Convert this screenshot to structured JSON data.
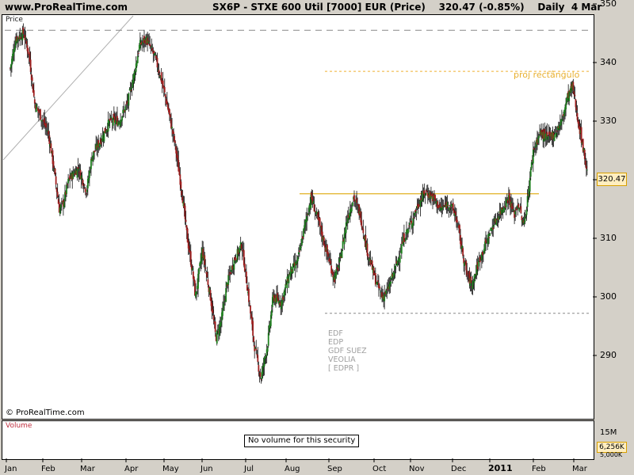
{
  "header": {
    "site": "www.ProRealTime.com",
    "title": "SX6P - STXE 600 Util [7000] EUR (Price)    320.47 (-0.85%)    Daily  4 Mar"
  },
  "panels": {
    "price_label": "Price",
    "volume_label": "Volume",
    "copyright": "© ProRealTime.com",
    "no_volume_text": "No volume for this security"
  },
  "annotations": {
    "proj_label": "proj rectângulo",
    "company_list": [
      "EDF",
      "EDP",
      "GDF SUEZ",
      "VEOLIA",
      "[ EDPR ]"
    ]
  },
  "colors": {
    "up_candle": "#208020",
    "down_candle": "#a02020",
    "resistance_line": "#e0b020",
    "proj_line": "#f0b030",
    "dashed_level": "#888888"
  },
  "chart_data": {
    "type": "candlestick",
    "instrument": "SX6P - STXE 600 Util [7000] EUR",
    "last_price": "320.47",
    "change": "-0.85%",
    "period": "Daily",
    "date": "4 Mar",
    "y_ticks": [
      290,
      300,
      310,
      320,
      330,
      340,
      350
    ],
    "ylim": [
      282,
      352
    ],
    "x_ticks": [
      "Jan",
      "Feb",
      "Mar",
      "Apr",
      "May",
      "Jun",
      "Jul",
      "Aug",
      "Sep",
      "Oct",
      "Nov",
      "Dec",
      "2011",
      "Feb",
      "Mar"
    ],
    "price_label": "320.47",
    "volume_ticks": [
      "15M",
      "6,256K",
      "5,000K"
    ],
    "levels": {
      "dashed_top": 345.5,
      "proj_rectangle": 338.5,
      "resistance": 317.6,
      "dashed_support": 297.2
    },
    "anchors": [
      [
        "Jan 4",
        339
      ],
      [
        "Jan 8",
        344
      ],
      [
        "Jan 14",
        345
      ],
      [
        "Jan 18",
        341
      ],
      [
        "Jan 22",
        333
      ],
      [
        "Feb 1",
        328
      ],
      [
        "Feb 5",
        322
      ],
      [
        "Feb 9",
        315
      ],
      [
        "Feb 12",
        316
      ],
      [
        "Feb 16",
        320
      ],
      [
        "Feb 23",
        322
      ],
      [
        "Mar 1",
        318
      ],
      [
        "Mar 5",
        324
      ],
      [
        "Mar 12",
        327
      ],
      [
        "Mar 18",
        330
      ],
      [
        "Mar 25",
        330
      ],
      [
        "Mar 31",
        333
      ],
      [
        "Apr 5",
        338
      ],
      [
        "Apr 9",
        343
      ],
      [
        "Apr 14",
        344
      ],
      [
        "Apr 20",
        341
      ],
      [
        "Apr 24",
        338
      ],
      [
        "Apr 30",
        332
      ],
      [
        "May 5",
        326
      ],
      [
        "May 10",
        318
      ],
      [
        "May 14",
        310
      ],
      [
        "May 18",
        304
      ],
      [
        "May 20",
        300
      ],
      [
        "May 25",
        308
      ],
      [
        "May 31",
        300
      ],
      [
        "Jun 4",
        293
      ],
      [
        "Jun 8",
        296
      ],
      [
        "Jun 12",
        302
      ],
      [
        "Jun 17",
        306
      ],
      [
        "Jun 23",
        309
      ],
      [
        "Jun 28",
        300
      ],
      [
        "Jul 2",
        292
      ],
      [
        "Jul 7",
        286
      ],
      [
        "Jul 12",
        292
      ],
      [
        "Jul 16",
        300
      ],
      [
        "Jul 22",
        299
      ],
      [
        "Jul 28",
        304
      ],
      [
        "Aug 3",
        306
      ],
      [
        "Aug 9",
        313
      ],
      [
        "Aug 13",
        317
      ],
      [
        "Aug 18",
        313
      ],
      [
        "Aug 24",
        308
      ],
      [
        "Aug 30",
        303
      ],
      [
        "Sep 3",
        306
      ],
      [
        "Sep 8",
        313
      ],
      [
        "Sep 13",
        317
      ],
      [
        "Sep 18",
        314
      ],
      [
        "Sep 23",
        308
      ],
      [
        "Sep 29",
        303
      ],
      [
        "Oct 4",
        300
      ],
      [
        "Oct 8",
        301
      ],
      [
        "Oct 14",
        305
      ],
      [
        "Oct 20",
        310
      ],
      [
        "Oct 26",
        313
      ],
      [
        "Oct 31",
        316
      ],
      [
        "Nov 5",
        318
      ],
      [
        "Nov 10",
        317
      ],
      [
        "Nov 16",
        315
      ],
      [
        "Nov 22",
        316
      ],
      [
        "Nov 27",
        314
      ],
      [
        "Dec 1",
        309
      ],
      [
        "Dec 5",
        304
      ],
      [
        "Dec 9",
        302
      ],
      [
        "Dec 14",
        306
      ],
      [
        "Dec 19",
        309
      ],
      [
        "Dec 24",
        312
      ],
      [
        "Dec 31",
        315
      ],
      [
        "Jan 5",
        317
      ],
      [
        "Jan 9",
        314
      ],
      [
        "Jan 12",
        316
      ],
      [
        "Jan 16",
        312
      ],
      [
        "Jan 19",
        317
      ],
      [
        "Jan 23",
        325
      ],
      [
        "Jan 28",
        328
      ],
      [
        "Feb 3",
        327
      ],
      [
        "Feb 8",
        328
      ],
      [
        "Feb 13",
        330
      ],
      [
        "Feb 17",
        334
      ],
      [
        "Feb 21",
        336
      ],
      [
        "Feb 25",
        330
      ],
      [
        "Mar 1",
        325
      ],
      [
        "Mar 4",
        320.5
      ]
    ],
    "anchor_x": [
      4,
      8,
      14,
      18,
      22,
      32,
      36,
      40,
      43,
      47,
      54,
      60,
      64,
      71,
      77,
      84,
      90,
      95,
      99,
      104,
      110,
      114,
      120,
      125,
      130,
      134,
      138,
      140,
      145,
      151,
      155,
      159,
      163,
      168,
      174,
      179,
      183,
      188,
      193,
      197,
      203,
      209,
      215,
      221,
      225,
      230,
      236,
      242,
      246,
      251,
      256,
      261,
      266,
      272,
      277,
      281,
      287,
      293,
      299,
      304,
      309,
      314,
      320,
      326,
      331,
      335,
      339,
      343,
      348,
      353,
      358,
      365,
      370,
      374,
      377,
      381,
      384,
      388,
      393,
      399,
      404,
      409,
      413,
      417,
      421,
      425,
      428
    ]
  }
}
